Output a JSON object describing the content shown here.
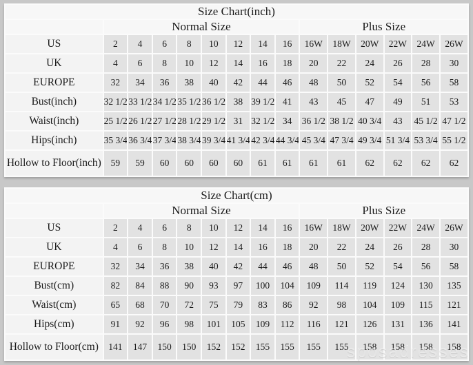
{
  "page": {
    "background": "#c8c8c8",
    "cell_color": "#e2e2e2",
    "panel_color": "#f7f7f7",
    "watermark": "sposadresses"
  },
  "tables": [
    {
      "title": "Size Chart(inch)",
      "group_headers": {
        "normal": "Normal Size",
        "plus": "Plus Size"
      },
      "rows": [
        {
          "label": "US",
          "normal": [
            "2",
            "4",
            "6",
            "8",
            "10",
            "12",
            "14",
            "16"
          ],
          "plus": [
            "16W",
            "18W",
            "20W",
            "22W",
            "24W",
            "26W"
          ]
        },
        {
          "label": "UK",
          "normal": [
            "4",
            "6",
            "8",
            "10",
            "12",
            "14",
            "16",
            "18"
          ],
          "plus": [
            "20",
            "22",
            "24",
            "26",
            "28",
            "30"
          ]
        },
        {
          "label": "EUROPE",
          "normal": [
            "32",
            "34",
            "36",
            "38",
            "40",
            "42",
            "44",
            "46"
          ],
          "plus": [
            "48",
            "50",
            "52",
            "54",
            "56",
            "58"
          ]
        },
        {
          "label": "Bust(inch)",
          "normal": [
            "32 1/2",
            "33 1/2",
            "34 1/2",
            "35 1/2",
            "36 1/2",
            "38",
            "39 1/2",
            "41"
          ],
          "plus": [
            "43",
            "45",
            "47",
            "49",
            "51",
            "53"
          ]
        },
        {
          "label": "Waist(inch)",
          "normal": [
            "25 1/2",
            "26 1/2",
            "27 1/2",
            "28 1/2",
            "29 1/2",
            "31",
            "32 1/2",
            "34"
          ],
          "plus": [
            "36 1/2",
            "38 1/2",
            "40 3/4",
            "43",
            "45 1/2",
            "47 1/2"
          ]
        },
        {
          "label": "Hips(inch)",
          "normal": [
            "35 3/4",
            "36 3/4",
            "37 3/4",
            "38 3/4",
            "39 3/4",
            "41 3/4",
            "42 3/4",
            "44 3/4"
          ],
          "plus": [
            "45 3/4",
            "47 3/4",
            "49 3/4",
            "51 3/4",
            "53 3/4",
            "55 1/2"
          ]
        },
        {
          "label": "Hollow to Floor(inch)",
          "normal": [
            "59",
            "59",
            "60",
            "60",
            "60",
            "60",
            "61",
            "61"
          ],
          "plus": [
            "61",
            "61",
            "62",
            "62",
            "62",
            "62"
          ]
        }
      ]
    },
    {
      "title": "Size Chart(cm)",
      "group_headers": {
        "normal": "Normal Size",
        "plus": "Plus Size"
      },
      "rows": [
        {
          "label": "US",
          "normal": [
            "2",
            "4",
            "6",
            "8",
            "10",
            "12",
            "14",
            "16"
          ],
          "plus": [
            "16W",
            "18W",
            "20W",
            "22W",
            "24W",
            "26W"
          ]
        },
        {
          "label": "UK",
          "normal": [
            "4",
            "6",
            "8",
            "10",
            "12",
            "14",
            "16",
            "18"
          ],
          "plus": [
            "20",
            "22",
            "24",
            "26",
            "28",
            "30"
          ]
        },
        {
          "label": "EUROPE",
          "normal": [
            "32",
            "34",
            "36",
            "38",
            "40",
            "42",
            "44",
            "46"
          ],
          "plus": [
            "48",
            "50",
            "52",
            "54",
            "56",
            "58"
          ]
        },
        {
          "label": "Bust(cm)",
          "normal": [
            "82",
            "84",
            "88",
            "90",
            "93",
            "97",
            "100",
            "104"
          ],
          "plus": [
            "109",
            "114",
            "119",
            "124",
            "130",
            "135"
          ]
        },
        {
          "label": "Waist(cm)",
          "normal": [
            "65",
            "68",
            "70",
            "72",
            "75",
            "79",
            "83",
            "86"
          ],
          "plus": [
            "92",
            "98",
            "104",
            "109",
            "115",
            "121"
          ]
        },
        {
          "label": "Hips(cm)",
          "normal": [
            "91",
            "92",
            "96",
            "98",
            "101",
            "105",
            "109",
            "112"
          ],
          "plus": [
            "116",
            "121",
            "126",
            "131",
            "136",
            "141"
          ]
        },
        {
          "label": "Hollow to Floor(cm)",
          "normal": [
            "141",
            "147",
            "150",
            "150",
            "152",
            "152",
            "155",
            "155"
          ],
          "plus": [
            "155",
            "155",
            "158",
            "158",
            "158",
            "158"
          ]
        }
      ]
    }
  ]
}
